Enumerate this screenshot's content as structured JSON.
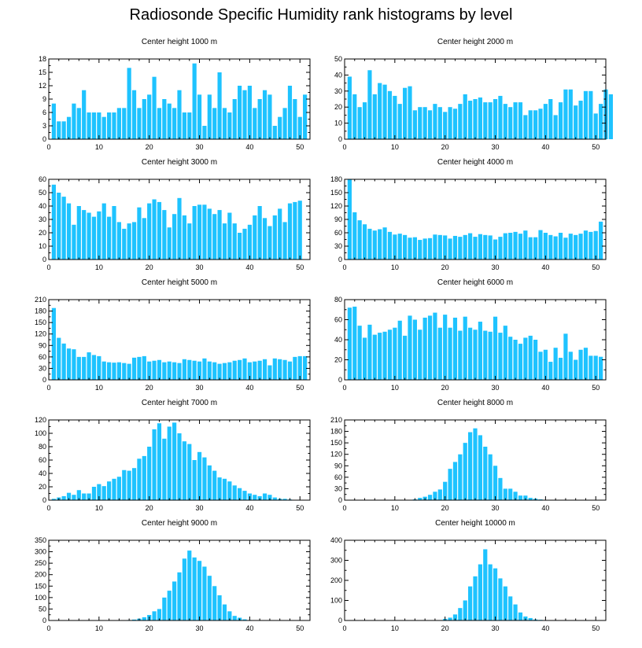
{
  "title": "Radiosonde Specific Humidity rank histograms by level",
  "colors": {
    "bar": "#1ec3ff",
    "axis": "#000000",
    "background": "#ffffff"
  },
  "chart_data": [
    {
      "type": "bar",
      "title": "Center height 1000 m",
      "xlim": [
        0,
        52
      ],
      "xticks": [
        0,
        10,
        20,
        30,
        40,
        50
      ],
      "ylim": [
        0,
        18
      ],
      "yticks": [
        0,
        3,
        6,
        9,
        12,
        15,
        18
      ],
      "values": [
        8,
        4,
        4,
        5,
        8,
        7,
        11,
        6,
        6,
        6,
        5,
        6,
        6,
        7,
        7,
        16,
        11,
        7,
        9,
        10,
        14,
        7,
        9,
        8,
        7,
        11,
        6,
        6,
        17,
        10,
        3,
        10,
        7,
        15,
        7,
        6,
        9,
        12,
        11,
        12,
        7,
        9,
        11,
        10,
        3,
        5,
        7,
        12,
        9,
        5,
        10
      ]
    },
    {
      "type": "bar",
      "title": "Center height 2000 m",
      "xlim": [
        0,
        52
      ],
      "xticks": [
        0,
        10,
        20,
        30,
        40,
        50
      ],
      "ylim": [
        0,
        50
      ],
      "yticks": [
        0,
        10,
        20,
        30,
        40,
        50
      ],
      "values": [
        39,
        28,
        20,
        23,
        43,
        28,
        35,
        34,
        30,
        27,
        22,
        32,
        33,
        18,
        20,
        20,
        18,
        22,
        20,
        17,
        20,
        19,
        22,
        28,
        24,
        25,
        26,
        23,
        23,
        25,
        27,
        22,
        20,
        23,
        23,
        15,
        18,
        18,
        19,
        22,
        25,
        15,
        23,
        31,
        31,
        21,
        24,
        30,
        30,
        16,
        22,
        31,
        28
      ]
    },
    {
      "type": "bar",
      "title": "Center height 3000 m",
      "xlim": [
        0,
        52
      ],
      "xticks": [
        0,
        10,
        20,
        30,
        40,
        50
      ],
      "ylim": [
        0,
        60
      ],
      "yticks": [
        0,
        10,
        20,
        30,
        40,
        50,
        60
      ],
      "values": [
        56,
        50,
        47,
        42,
        26,
        40,
        37,
        35,
        32,
        36,
        42,
        32,
        40,
        28,
        23,
        27,
        28,
        39,
        31,
        42,
        45,
        43,
        37,
        24,
        34,
        46,
        33,
        27,
        40,
        41,
        41,
        38,
        34,
        37,
        27,
        35,
        27,
        20,
        23,
        26,
        33,
        40,
        31,
        25,
        33,
        38,
        28,
        42,
        43,
        44
      ]
    },
    {
      "type": "bar",
      "title": "Center height 4000 m",
      "xlim": [
        0,
        52
      ],
      "xticks": [
        0,
        10,
        20,
        30,
        40,
        50
      ],
      "ylim": [
        0,
        180
      ],
      "yticks": [
        0,
        30,
        60,
        90,
        120,
        150,
        180
      ],
      "values": [
        180,
        106,
        88,
        79,
        69,
        65,
        68,
        72,
        62,
        56,
        58,
        55,
        49,
        50,
        44,
        47,
        48,
        56,
        55,
        54,
        47,
        53,
        51,
        55,
        59,
        51,
        57,
        55,
        54,
        45,
        51,
        59,
        60,
        62,
        58,
        65,
        50,
        50,
        66,
        60,
        55,
        52,
        60,
        49,
        58,
        55,
        58,
        65,
        62,
        64,
        85
      ]
    },
    {
      "type": "bar",
      "title": "Center height 5000 m",
      "xlim": [
        0,
        52
      ],
      "xticks": [
        0,
        10,
        20,
        30,
        40,
        50
      ],
      "ylim": [
        0,
        210
      ],
      "yticks": [
        0,
        30,
        60,
        90,
        120,
        150,
        180,
        210
      ],
      "values": [
        188,
        110,
        95,
        82,
        80,
        60,
        60,
        72,
        65,
        62,
        48,
        46,
        45,
        46,
        44,
        42,
        58,
        60,
        62,
        48,
        50,
        52,
        46,
        48,
        46,
        44,
        54,
        52,
        50,
        48,
        56,
        48,
        46,
        42,
        44,
        46,
        50,
        52,
        56,
        46,
        48,
        50,
        54,
        38,
        56,
        54,
        52,
        48,
        60,
        62,
        62
      ]
    },
    {
      "type": "bar",
      "title": "Center height 6000 m",
      "xlim": [
        0,
        52
      ],
      "xticks": [
        0,
        10,
        20,
        30,
        40,
        50
      ],
      "ylim": [
        0,
        80
      ],
      "yticks": [
        0,
        20,
        40,
        60,
        80
      ],
      "values": [
        72,
        73,
        54,
        42,
        55,
        45,
        47,
        48,
        50,
        52,
        59,
        44,
        64,
        60,
        50,
        62,
        64,
        67,
        52,
        65,
        52,
        62,
        49,
        63,
        52,
        50,
        58,
        49,
        48,
        63,
        47,
        54,
        43,
        40,
        36,
        42,
        44,
        40,
        28,
        30,
        18,
        32,
        22,
        46,
        28,
        20,
        30,
        32,
        24,
        24,
        23
      ]
    },
    {
      "type": "bar",
      "title": "Center height 7000 m",
      "xlim": [
        0,
        52
      ],
      "xticks": [
        0,
        10,
        20,
        30,
        40,
        50
      ],
      "ylim": [
        0,
        120
      ],
      "yticks": [
        0,
        20,
        40,
        60,
        80,
        100,
        120
      ],
      "values": [
        2,
        4,
        6,
        11,
        8,
        15,
        10,
        10,
        20,
        24,
        21,
        28,
        32,
        35,
        45,
        44,
        48,
        62,
        66,
        80,
        106,
        115,
        92,
        110,
        116,
        100,
        88,
        84,
        60,
        72,
        64,
        52,
        44,
        34,
        32,
        28,
        22,
        18,
        14,
        10,
        8,
        6,
        10,
        8,
        4,
        2,
        2,
        1,
        0,
        0,
        0
      ]
    },
    {
      "type": "bar",
      "title": "Center height 8000 m",
      "xlim": [
        0,
        52
      ],
      "xticks": [
        0,
        10,
        20,
        30,
        40,
        50
      ],
      "ylim": [
        0,
        210
      ],
      "yticks": [
        0,
        30,
        60,
        90,
        120,
        150,
        180,
        210
      ],
      "values": [
        0,
        0,
        0,
        0,
        0,
        0,
        0,
        0,
        0,
        0,
        0,
        0,
        0,
        2,
        6,
        9,
        14,
        22,
        28,
        48,
        82,
        100,
        120,
        150,
        178,
        188,
        170,
        140,
        120,
        90,
        58,
        30,
        30,
        22,
        12,
        12,
        6,
        4,
        2,
        0,
        0,
        0,
        0,
        0,
        0,
        0,
        0,
        0,
        0,
        0,
        0
      ]
    },
    {
      "type": "bar",
      "title": "Center height 9000 m",
      "xlim": [
        0,
        52
      ],
      "xticks": [
        0,
        10,
        20,
        30,
        40,
        50
      ],
      "ylim": [
        0,
        350
      ],
      "yticks": [
        0,
        50,
        100,
        150,
        200,
        250,
        300,
        350
      ],
      "values": [
        0,
        0,
        0,
        0,
        0,
        0,
        0,
        0,
        0,
        0,
        0,
        0,
        0,
        0,
        0,
        2,
        4,
        8,
        14,
        24,
        40,
        50,
        100,
        130,
        170,
        210,
        270,
        305,
        275,
        260,
        235,
        195,
        150,
        110,
        70,
        40,
        20,
        12,
        5,
        2,
        0,
        0,
        0,
        0,
        0,
        0,
        0,
        0,
        0,
        0,
        0
      ]
    },
    {
      "type": "bar",
      "title": "Center height 10000 m",
      "xlim": [
        0,
        52
      ],
      "xticks": [
        0,
        10,
        20,
        30,
        40,
        50
      ],
      "ylim": [
        0,
        400
      ],
      "yticks": [
        0,
        100,
        200,
        300,
        400
      ],
      "values": [
        0,
        0,
        0,
        0,
        0,
        0,
        0,
        0,
        0,
        0,
        0,
        0,
        0,
        0,
        0,
        0,
        0,
        0,
        2,
        8,
        14,
        30,
        62,
        100,
        170,
        220,
        280,
        355,
        280,
        260,
        210,
        170,
        120,
        80,
        40,
        20,
        12,
        5,
        3,
        1,
        0,
        0,
        0,
        0,
        0,
        0,
        0,
        0,
        0,
        0,
        0
      ]
    }
  ]
}
